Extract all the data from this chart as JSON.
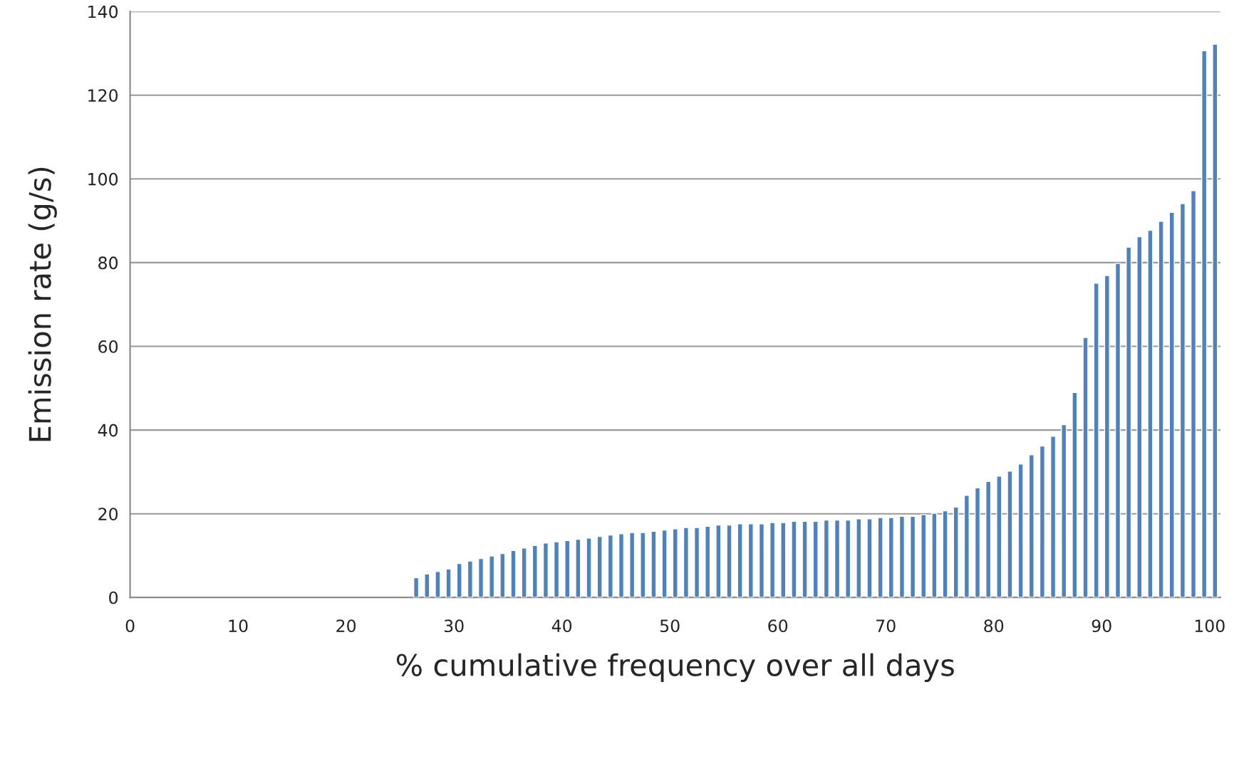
{
  "chart_data": {
    "type": "bar",
    "xlabel": "% cumulative frequency over all days",
    "ylabel": "Emission rate (g/s)",
    "x": [
      26.5,
      27.5,
      28.5,
      29.5,
      30.5,
      31.5,
      32.5,
      33.5,
      34.5,
      35.5,
      36.5,
      37.5,
      38.5,
      39.5,
      40.5,
      41.5,
      42.5,
      43.5,
      44.5,
      45.5,
      46.5,
      47.5,
      48.5,
      49.5,
      50.5,
      51.5,
      52.5,
      53.5,
      54.5,
      55.5,
      56.5,
      57.5,
      58.5,
      59.5,
      60.5,
      61.5,
      62.5,
      63.5,
      64.5,
      65.5,
      66.5,
      67.5,
      68.5,
      69.5,
      70.5,
      71.5,
      72.5,
      73.5,
      74.5,
      75.5,
      76.5,
      77.5,
      78.5,
      79.5,
      80.5,
      81.5,
      82.5,
      83.5,
      84.5,
      85.5,
      86.5,
      87.5,
      88.5,
      89.5,
      90.5,
      91.5,
      92.5,
      93.5,
      94.5,
      95.5,
      96.5,
      97.5,
      98.5,
      99.5,
      100.5
    ],
    "values": [
      4.7,
      5.6,
      6.2,
      6.8,
      8.1,
      8.7,
      9.3,
      9.9,
      10.5,
      11.2,
      11.8,
      12.4,
      13.0,
      13.3,
      13.6,
      13.9,
      14.2,
      14.6,
      14.9,
      15.2,
      15.5,
      15.5,
      15.8,
      16.1,
      16.4,
      16.7,
      16.7,
      17.0,
      17.3,
      17.3,
      17.6,
      17.6,
      17.6,
      17.9,
      17.9,
      18.2,
      18.2,
      18.2,
      18.5,
      18.5,
      18.5,
      18.8,
      18.8,
      19.1,
      19.1,
      19.4,
      19.4,
      19.8,
      20.1,
      20.7,
      21.6,
      24.4,
      26.2,
      27.7,
      29.0,
      30.2,
      31.9,
      34.1,
      36.2,
      38.5,
      41.3,
      49.0,
      62.1,
      75.1,
      76.9,
      79.8,
      83.7,
      86.2,
      87.7,
      89.9,
      92.0,
      94.1,
      97.2,
      130.6,
      132.2
    ],
    "color": "#4f81bd",
    "xlim": [
      0,
      101
    ],
    "ylim": [
      0,
      140
    ],
    "xticks": [
      0,
      10,
      20,
      30,
      40,
      50,
      60,
      70,
      80,
      90,
      100
    ],
    "yticks": [
      0,
      20,
      40,
      60,
      80,
      100,
      120,
      140
    ],
    "grid": "y"
  }
}
